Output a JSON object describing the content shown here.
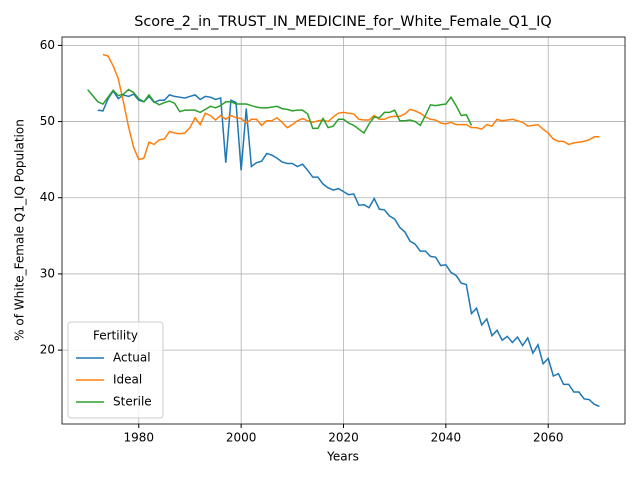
{
  "chart_data": {
    "type": "line",
    "title": "Score_2_in_TRUST_IN_MEDICINE_for_White_Female_Q1_IQ",
    "xlabel": "Years",
    "ylabel": "% of White_Female Q1_IQ Population",
    "x": [
      1970,
      1971,
      1972,
      1973,
      1974,
      1975,
      1976,
      1977,
      1978,
      1979,
      1980,
      1981,
      1982,
      1983,
      1984,
      1985,
      1986,
      1987,
      1988,
      1989,
      1990,
      1991,
      1992,
      1993,
      1994,
      1995,
      1996,
      1997,
      1998,
      1999,
      2000,
      2001,
      2002,
      2003,
      2004,
      2005,
      2006,
      2007,
      2008,
      2009,
      2010,
      2011,
      2012,
      2013,
      2014,
      2015,
      2016,
      2017,
      2018,
      2019,
      2020,
      2021,
      2022,
      2023,
      2024,
      2025,
      2026,
      2027,
      2028,
      2029,
      2030,
      2031,
      2032,
      2033,
      2034,
      2035,
      2036,
      2037,
      2038,
      2039,
      2040,
      2041,
      2042,
      2043,
      2044,
      2045,
      2046,
      2047,
      2048,
      2049,
      2050,
      2051,
      2052,
      2053,
      2054,
      2055,
      2056,
      2057,
      2058,
      2059,
      2060,
      2061,
      2062,
      2063,
      2064,
      2065,
      2066,
      2067,
      2068,
      2069,
      2070
    ],
    "series": [
      {
        "name": "Actual",
        "color": "#1f77b4",
        "values": [
          null,
          null,
          51.5,
          51.4,
          53.0,
          54.0,
          53.0,
          53.5,
          53.3,
          53.6,
          52.8,
          52.6,
          53.3,
          52.5,
          52.8,
          52.8,
          53.5,
          53.3,
          53.2,
          53.1,
          53.3,
          53.5,
          52.9,
          53.3,
          53.2,
          52.9,
          53.1,
          44.6,
          52.8,
          52.5,
          43.6,
          51.7,
          44.1,
          44.6,
          44.8,
          45.8,
          45.6,
          45.2,
          44.7,
          44.5,
          44.5,
          44.1,
          44.4,
          43.6,
          42.7,
          42.7,
          41.8,
          41.3,
          41.0,
          41.2,
          40.8,
          40.4,
          40.5,
          39.0,
          39.1,
          38.7,
          39.9,
          38.5,
          38.4,
          37.6,
          37.2,
          36.1,
          35.5,
          34.3,
          33.9,
          33.0,
          33.0,
          32.3,
          32.2,
          31.1,
          31.2,
          30.2,
          29.8,
          28.8,
          28.6,
          24.8,
          25.5,
          23.3,
          24.1,
          21.9,
          22.6,
          21.3,
          21.8,
          21.0,
          21.7,
          20.6,
          21.6,
          19.6,
          20.7,
          18.2,
          18.9,
          16.6,
          16.9,
          15.5,
          15.5,
          14.5,
          14.5,
          13.6,
          13.5,
          12.9,
          12.6
        ]
      },
      {
        "name": "Ideal",
        "color": "#ff7f0e",
        "values": [
          null,
          null,
          null,
          58.8,
          58.6,
          57.3,
          55.6,
          52.6,
          49.3,
          46.6,
          45.0,
          45.2,
          47.3,
          47.0,
          47.6,
          47.7,
          48.7,
          48.5,
          48.4,
          48.5,
          49.2,
          50.5,
          49.6,
          51.1,
          50.8,
          50.2,
          50.8,
          50.3,
          50.8,
          50.5,
          50.4,
          49.8,
          50.3,
          50.3,
          49.5,
          50.1,
          50.1,
          50.5,
          49.9,
          49.2,
          49.6,
          50.1,
          50.4,
          50.1,
          49.9,
          50.1,
          50.2,
          50.0,
          50.6,
          51.1,
          51.2,
          51.1,
          51.0,
          50.3,
          50.2,
          50.2,
          50.8,
          50.3,
          50.3,
          50.6,
          50.7,
          50.7,
          51.0,
          51.6,
          51.4,
          51.1,
          50.6,
          50.3,
          50.2,
          49.8,
          49.7,
          49.9,
          49.6,
          49.6,
          49.6,
          49.2,
          49.2,
          49.0,
          49.6,
          49.4,
          50.3,
          50.1,
          50.2,
          50.3,
          50.1,
          49.9,
          49.4,
          49.5,
          49.6,
          49.0,
          48.5,
          47.7,
          47.4,
          47.4,
          47.0,
          47.2,
          47.3,
          47.4,
          47.6,
          48.0,
          48.0
        ]
      },
      {
        "name": "Sterile",
        "color": "#2ca02c",
        "values": [
          54.2,
          53.4,
          52.6,
          52.3,
          53.2,
          54.1,
          53.4,
          53.6,
          54.2,
          53.8,
          53.0,
          52.6,
          53.5,
          52.6,
          52.2,
          52.5,
          52.7,
          52.4,
          51.3,
          51.5,
          51.5,
          51.5,
          51.2,
          51.6,
          52.0,
          51.8,
          52.1,
          52.6,
          52.6,
          52.3,
          52.3,
          52.3,
          52.1,
          51.9,
          51.8,
          51.8,
          51.9,
          52.0,
          51.7,
          51.6,
          51.4,
          51.5,
          51.5,
          51.0,
          49.1,
          49.1,
          50.4,
          49.2,
          49.4,
          50.3,
          50.3,
          49.8,
          49.5,
          49.0,
          48.5,
          49.7,
          50.6,
          50.5,
          51.2,
          51.2,
          51.5,
          50.1,
          50.1,
          50.2,
          50.0,
          49.5,
          50.8,
          52.2,
          52.1,
          52.2,
          52.3,
          53.2,
          52.1,
          50.8,
          50.9,
          49.5,
          null,
          null,
          null,
          null,
          null,
          null,
          null,
          null,
          null,
          null,
          null,
          null,
          null,
          null,
          null,
          null,
          null,
          null,
          null,
          null,
          null,
          null,
          null,
          null,
          null
        ]
      }
    ],
    "xlim": [
      1965,
      2075
    ],
    "xticks": [
      1980,
      2000,
      2020,
      2040,
      2060
    ],
    "ylim": [
      10.3,
      61.1
    ],
    "yticks": [
      20,
      30,
      40,
      50,
      60
    ],
    "grid": true,
    "legend_title": "Fertility",
    "legend_loc": "lower left"
  }
}
